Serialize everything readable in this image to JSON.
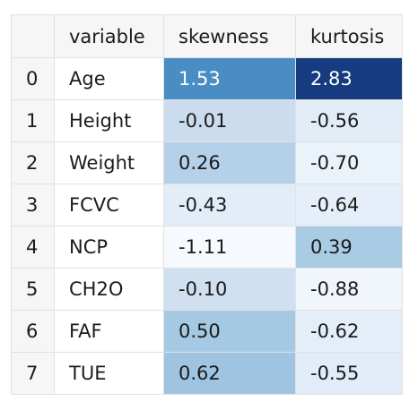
{
  "table": {
    "headers": [
      "",
      "variable",
      "skewness",
      "kurtosis"
    ],
    "rows": [
      {
        "index": "0",
        "variable": "Age",
        "skewness": "1.53",
        "kurtosis": "2.83",
        "skew_bg": "#4a8dc5",
        "skew_fg": "#ffffff",
        "kurt_bg": "#163b80",
        "kurt_fg": "#ffffff"
      },
      {
        "index": "1",
        "variable": "Height",
        "skewness": "-0.01",
        "kurtosis": "-0.56",
        "skew_bg": "#cbdcef",
        "skew_fg": "#1b1b1b",
        "kurt_bg": "#e2edf8",
        "kurt_fg": "#1b1b1b"
      },
      {
        "index": "2",
        "variable": "Weight",
        "skewness": "0.26",
        "kurtosis": "-0.70",
        "skew_bg": "#b5d1ea",
        "skew_fg": "#1b1b1b",
        "kurt_bg": "#eaf2fa",
        "kurt_fg": "#1b1b1b"
      },
      {
        "index": "3",
        "variable": "FCVC",
        "skewness": "-0.43",
        "kurtosis": "-0.64",
        "skew_bg": "#e3edf8",
        "skew_fg": "#1b1b1b",
        "kurt_bg": "#e6eff9",
        "kurt_fg": "#1b1b1b"
      },
      {
        "index": "4",
        "variable": "NCP",
        "skewness": "-1.11",
        "kurtosis": "0.39",
        "skew_bg": "#f6f9fd",
        "skew_fg": "#1b1b1b",
        "kurt_bg": "#a9cbe4",
        "kurt_fg": "#1b1b1b"
      },
      {
        "index": "5",
        "variable": "CH2O",
        "skewness": "-0.10",
        "kurtosis": "-0.88",
        "skew_bg": "#d0e0f1",
        "skew_fg": "#1b1b1b",
        "kurt_bg": "#f1f6fc",
        "kurt_fg": "#1b1b1b"
      },
      {
        "index": "6",
        "variable": "FAF",
        "skewness": "0.50",
        "kurtosis": "-0.62",
        "skew_bg": "#a6c9e3",
        "skew_fg": "#1b1b1b",
        "kurt_bg": "#e4eef8",
        "kurt_fg": "#1b1b1b"
      },
      {
        "index": "7",
        "variable": "TUE",
        "skewness": "0.62",
        "kurtosis": "-0.55",
        "skew_bg": "#9ec4e1",
        "skew_fg": "#1b1b1b",
        "kurt_bg": "#e1ecf8",
        "kurt_fg": "#1b1b1b"
      }
    ]
  }
}
